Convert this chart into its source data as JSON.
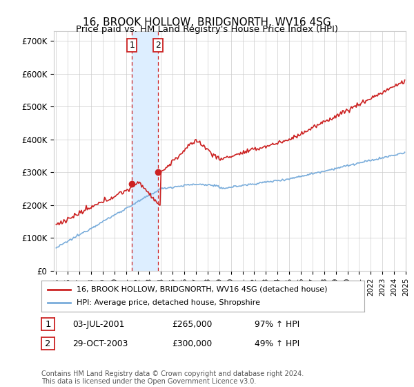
{
  "title": "16, BROOK HOLLOW, BRIDGNORTH, WV16 4SG",
  "subtitle": "Price paid vs. HM Land Registry's House Price Index (HPI)",
  "legend_line1": "16, BROOK HOLLOW, BRIDGNORTH, WV16 4SG (detached house)",
  "legend_line2": "HPI: Average price, detached house, Shropshire",
  "footer": "Contains HM Land Registry data © Crown copyright and database right 2024.\nThis data is licensed under the Open Government Licence v3.0.",
  "sale1_label": "03-JUL-2001",
  "sale1_price": 265000,
  "sale1_price_str": "£265,000",
  "sale1_pct": "97% ↑ HPI",
  "sale1_year": 2001,
  "sale1_month": 7,
  "sale2_label": "29-OCT-2003",
  "sale2_price": 300000,
  "sale2_price_str": "£300,000",
  "sale2_pct": "49% ↑ HPI",
  "sale2_year": 2003,
  "sale2_month": 10,
  "hpi_color": "#7aaddb",
  "property_color": "#cc2222",
  "highlight_color": "#ddeeff",
  "grid_color": "#cccccc",
  "y_ticks": [
    0,
    100000,
    200000,
    300000,
    400000,
    500000,
    600000,
    700000
  ],
  "y_labels": [
    "£0",
    "£100K",
    "£200K",
    "£300K",
    "£400K",
    "£500K",
    "£600K",
    "£700K"
  ],
  "x_start_year": 1995,
  "x_end_year": 2025,
  "ylim_max": 730000
}
